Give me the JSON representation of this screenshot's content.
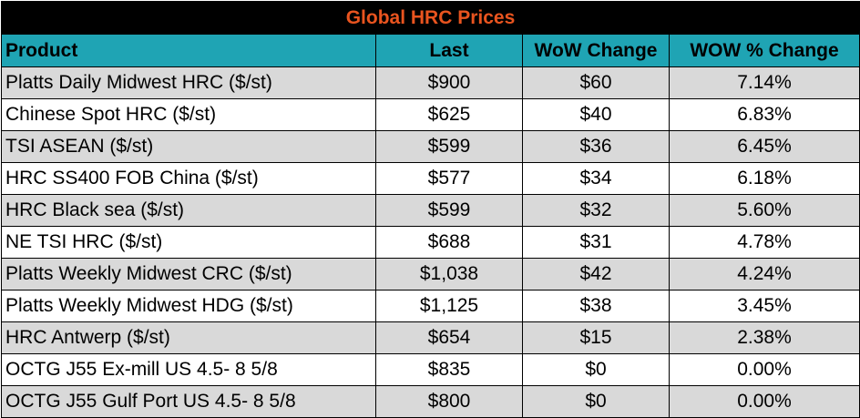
{
  "title": "Global HRC Prices",
  "columns": [
    "Product",
    "Last",
    "WoW Change",
    "WOW % Change"
  ],
  "rows": [
    {
      "product": "Platts Daily Midwest HRC ($/st)",
      "last": "$900",
      "wow_change": "$60",
      "wow_pct": "7.14%"
    },
    {
      "product": "Chinese Spot HRC ($/st)",
      "last": "$625",
      "wow_change": "$40",
      "wow_pct": "6.83%"
    },
    {
      "product": "TSI ASEAN ($/st)",
      "last": "$599",
      "wow_change": "$36",
      "wow_pct": "6.45%"
    },
    {
      "product": "HRC SS400 FOB China ($/st)",
      "last": "$577",
      "wow_change": "$34",
      "wow_pct": "6.18%"
    },
    {
      "product": "HRC Black sea ($/st)",
      "last": "$599",
      "wow_change": "$32",
      "wow_pct": "5.60%"
    },
    {
      "product": "NE TSI HRC ($/st)",
      "last": "$688",
      "wow_change": "$31",
      "wow_pct": "4.78%"
    },
    {
      "product": "Platts Weekly Midwest CRC ($/st)",
      "last": "$1,038",
      "wow_change": "$42",
      "wow_pct": "4.24%"
    },
    {
      "product": "Platts Weekly Midwest HDG ($/st)",
      "last": "$1,125",
      "wow_change": "$38",
      "wow_pct": "3.45%"
    },
    {
      "product": "HRC Antwerp ($/st)",
      "last": "$654",
      "wow_change": "$15",
      "wow_pct": "2.38%"
    },
    {
      "product": "OCTG J55 Ex-mill US 4.5- 8 5/8",
      "last": "$835",
      "wow_change": "$0",
      "wow_pct": "0.00%"
    },
    {
      "product": "OCTG J55 Gulf Port US 4.5- 8 5/8",
      "last": "$800",
      "wow_change": "$0",
      "wow_pct": "0.00%"
    }
  ],
  "colors": {
    "title_bg": "#000000",
    "title_text": "#e9541f",
    "header_bg": "#1fa4b4",
    "row_shade": "#d9d9d9",
    "row_plain": "#ffffff"
  }
}
